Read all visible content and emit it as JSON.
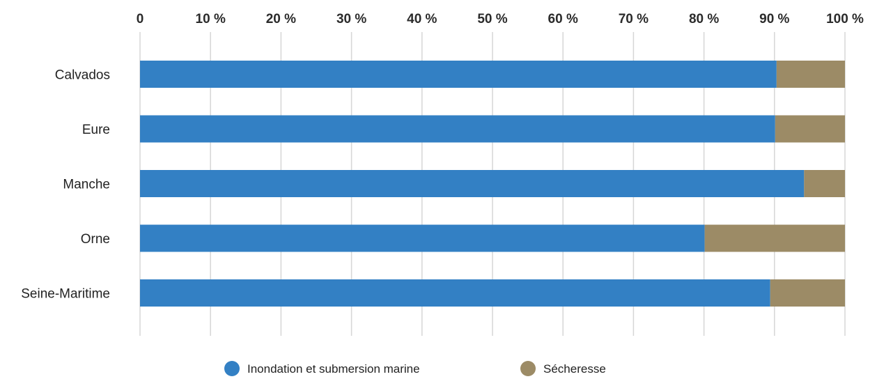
{
  "chart_data": {
    "type": "bar",
    "orientation": "horizontal",
    "stacked": true,
    "categories": [
      "Calvados",
      "Eure",
      "Manche",
      "Orne",
      "Seine-Maritime"
    ],
    "series": [
      {
        "name": "Inondation et submersion marine",
        "color": "#3380c4",
        "values": [
          90.3,
          90.1,
          94.2,
          80.1,
          89.4
        ]
      },
      {
        "name": "Sécheresse",
        "color": "#9c8b66",
        "values": [
          9.7,
          9.9,
          5.8,
          19.9,
          10.6
        ]
      }
    ],
    "xlim": [
      0,
      100
    ],
    "x_ticks": [
      0,
      10,
      20,
      30,
      40,
      50,
      60,
      70,
      80,
      90,
      100
    ],
    "x_tick_labels": [
      "0",
      "10 %",
      "20 %",
      "30 %",
      "40 %",
      "50 %",
      "60 %",
      "70 %",
      "80 %",
      "90 %",
      "100 %"
    ],
    "x_axis_position": "top",
    "grid": true,
    "legend_position": "bottom-center",
    "title": "",
    "xlabel": "",
    "ylabel": ""
  }
}
